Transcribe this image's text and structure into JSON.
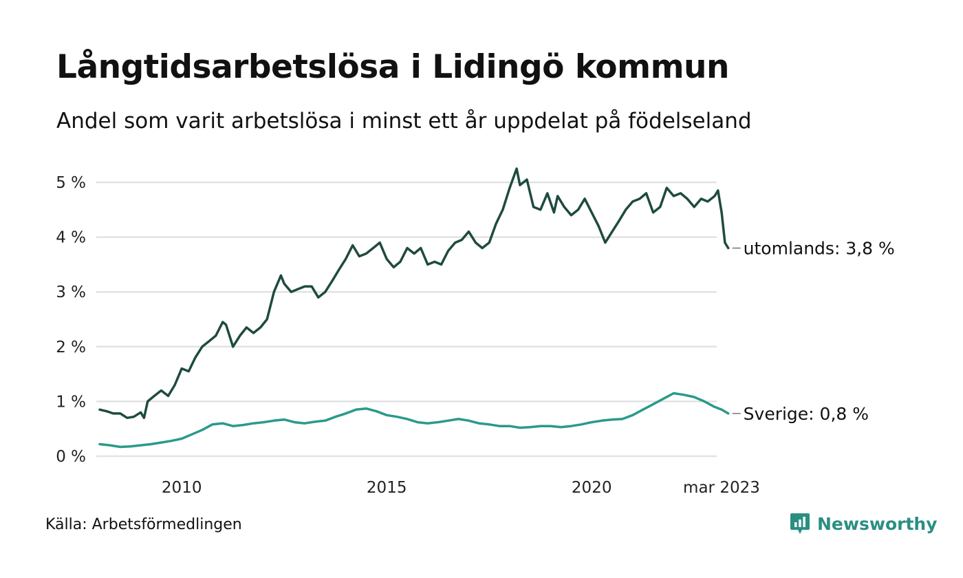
{
  "title": "Långtidsarbetslösa i Lidingö kommun",
  "subtitle": "Andel som varit arbetslösa i minst ett år uppdelat på födelseland",
  "source": "Källa: Arbetsförmedlingen",
  "brand": {
    "name": "Newsworthy",
    "icon": "newsworthy-logo-icon",
    "color": "#2a8f82"
  },
  "chart_data": {
    "type": "line",
    "title": "Långtidsarbetslösa i Lidingö kommun",
    "subtitle": "Andel som varit arbetslösa i minst ett år uppdelat på födelseland",
    "xlabel": "",
    "ylabel": "",
    "x_range": [
      2008.0,
      2023.167
    ],
    "ylim": [
      0,
      5.3
    ],
    "y_ticks": [
      0,
      1,
      2,
      3,
      4,
      5
    ],
    "y_tick_labels": [
      "0 %",
      "1 %",
      "2 %",
      "3 %",
      "4 %",
      "5 %"
    ],
    "x_ticks": [
      2010,
      2015,
      2020,
      2023.167
    ],
    "x_tick_labels": [
      "2010",
      "2015",
      "2020",
      "mar 2023"
    ],
    "grid": true,
    "legend": "none (direct end labels)",
    "series": [
      {
        "name": "utomlands",
        "end_label": "utomlands: 3,8 %",
        "color": "#1f4a40",
        "points": [
          [
            2008.0,
            0.85
          ],
          [
            2008.17,
            0.82
          ],
          [
            2008.33,
            0.78
          ],
          [
            2008.5,
            0.78
          ],
          [
            2008.67,
            0.7
          ],
          [
            2008.83,
            0.72
          ],
          [
            2009.0,
            0.8
          ],
          [
            2009.08,
            0.7
          ],
          [
            2009.17,
            1.0
          ],
          [
            2009.33,
            1.1
          ],
          [
            2009.5,
            1.2
          ],
          [
            2009.67,
            1.1
          ],
          [
            2009.83,
            1.3
          ],
          [
            2010.0,
            1.6
          ],
          [
            2010.17,
            1.55
          ],
          [
            2010.33,
            1.8
          ],
          [
            2010.5,
            2.0
          ],
          [
            2010.67,
            2.1
          ],
          [
            2010.83,
            2.2
          ],
          [
            2011.0,
            2.45
          ],
          [
            2011.08,
            2.4
          ],
          [
            2011.25,
            2.0
          ],
          [
            2011.42,
            2.2
          ],
          [
            2011.58,
            2.35
          ],
          [
            2011.75,
            2.25
          ],
          [
            2011.92,
            2.35
          ],
          [
            2012.08,
            2.5
          ],
          [
            2012.25,
            3.0
          ],
          [
            2012.42,
            3.3
          ],
          [
            2012.5,
            3.15
          ],
          [
            2012.67,
            3.0
          ],
          [
            2012.83,
            3.05
          ],
          [
            2013.0,
            3.1
          ],
          [
            2013.17,
            3.1
          ],
          [
            2013.33,
            2.9
          ],
          [
            2013.5,
            3.0
          ],
          [
            2013.67,
            3.2
          ],
          [
            2013.83,
            3.4
          ],
          [
            2014.0,
            3.6
          ],
          [
            2014.17,
            3.85
          ],
          [
            2014.33,
            3.65
          ],
          [
            2014.5,
            3.7
          ],
          [
            2014.67,
            3.8
          ],
          [
            2014.83,
            3.9
          ],
          [
            2015.0,
            3.6
          ],
          [
            2015.17,
            3.45
          ],
          [
            2015.33,
            3.55
          ],
          [
            2015.5,
            3.8
          ],
          [
            2015.67,
            3.7
          ],
          [
            2015.83,
            3.8
          ],
          [
            2016.0,
            3.5
          ],
          [
            2016.17,
            3.55
          ],
          [
            2016.33,
            3.5
          ],
          [
            2016.5,
            3.75
          ],
          [
            2016.67,
            3.9
          ],
          [
            2016.83,
            3.95
          ],
          [
            2017.0,
            4.1
          ],
          [
            2017.17,
            3.9
          ],
          [
            2017.33,
            3.8
          ],
          [
            2017.5,
            3.9
          ],
          [
            2017.67,
            4.25
          ],
          [
            2017.83,
            4.5
          ],
          [
            2018.0,
            4.9
          ],
          [
            2018.17,
            5.25
          ],
          [
            2018.25,
            4.95
          ],
          [
            2018.42,
            5.05
          ],
          [
            2018.58,
            4.55
          ],
          [
            2018.75,
            4.5
          ],
          [
            2018.92,
            4.8
          ],
          [
            2019.08,
            4.45
          ],
          [
            2019.17,
            4.75
          ],
          [
            2019.33,
            4.55
          ],
          [
            2019.5,
            4.4
          ],
          [
            2019.67,
            4.5
          ],
          [
            2019.83,
            4.7
          ],
          [
            2020.0,
            4.45
          ],
          [
            2020.17,
            4.2
          ],
          [
            2020.33,
            3.9
          ],
          [
            2020.5,
            4.1
          ],
          [
            2020.67,
            4.3
          ],
          [
            2020.83,
            4.5
          ],
          [
            2021.0,
            4.65
          ],
          [
            2021.17,
            4.7
          ],
          [
            2021.33,
            4.8
          ],
          [
            2021.5,
            4.45
          ],
          [
            2021.67,
            4.55
          ],
          [
            2021.83,
            4.9
          ],
          [
            2022.0,
            4.75
          ],
          [
            2022.17,
            4.8
          ],
          [
            2022.33,
            4.7
          ],
          [
            2022.5,
            4.55
          ],
          [
            2022.67,
            4.7
          ],
          [
            2022.83,
            4.65
          ],
          [
            2023.0,
            4.75
          ],
          [
            2023.08,
            4.85
          ],
          [
            2023.17,
            4.45
          ],
          [
            2023.25,
            3.9
          ],
          [
            2023.33,
            3.8
          ]
        ]
      },
      {
        "name": "Sverige",
        "end_label": "Sverige: 0,8 %",
        "color": "#2a9a8a",
        "points": [
          [
            2008.0,
            0.22
          ],
          [
            2008.25,
            0.2
          ],
          [
            2008.5,
            0.17
          ],
          [
            2008.75,
            0.18
          ],
          [
            2009.0,
            0.2
          ],
          [
            2009.25,
            0.22
          ],
          [
            2009.5,
            0.25
          ],
          [
            2009.75,
            0.28
          ],
          [
            2010.0,
            0.32
          ],
          [
            2010.25,
            0.4
          ],
          [
            2010.5,
            0.48
          ],
          [
            2010.75,
            0.58
          ],
          [
            2011.0,
            0.6
          ],
          [
            2011.25,
            0.55
          ],
          [
            2011.5,
            0.57
          ],
          [
            2011.75,
            0.6
          ],
          [
            2012.0,
            0.62
          ],
          [
            2012.25,
            0.65
          ],
          [
            2012.5,
            0.67
          ],
          [
            2012.75,
            0.62
          ],
          [
            2013.0,
            0.6
          ],
          [
            2013.25,
            0.63
          ],
          [
            2013.5,
            0.65
          ],
          [
            2013.75,
            0.72
          ],
          [
            2014.0,
            0.78
          ],
          [
            2014.25,
            0.85
          ],
          [
            2014.5,
            0.87
          ],
          [
            2014.75,
            0.82
          ],
          [
            2015.0,
            0.75
          ],
          [
            2015.25,
            0.72
          ],
          [
            2015.5,
            0.68
          ],
          [
            2015.75,
            0.62
          ],
          [
            2016.0,
            0.6
          ],
          [
            2016.25,
            0.62
          ],
          [
            2016.5,
            0.65
          ],
          [
            2016.75,
            0.68
          ],
          [
            2017.0,
            0.65
          ],
          [
            2017.25,
            0.6
          ],
          [
            2017.5,
            0.58
          ],
          [
            2017.75,
            0.55
          ],
          [
            2018.0,
            0.55
          ],
          [
            2018.25,
            0.52
          ],
          [
            2018.5,
            0.53
          ],
          [
            2018.75,
            0.55
          ],
          [
            2019.0,
            0.55
          ],
          [
            2019.25,
            0.53
          ],
          [
            2019.5,
            0.55
          ],
          [
            2019.75,
            0.58
          ],
          [
            2020.0,
            0.62
          ],
          [
            2020.25,
            0.65
          ],
          [
            2020.5,
            0.67
          ],
          [
            2020.75,
            0.68
          ],
          [
            2021.0,
            0.75
          ],
          [
            2021.25,
            0.85
          ],
          [
            2021.5,
            0.95
          ],
          [
            2021.75,
            1.05
          ],
          [
            2022.0,
            1.15
          ],
          [
            2022.25,
            1.12
          ],
          [
            2022.5,
            1.08
          ],
          [
            2022.75,
            1.0
          ],
          [
            2023.0,
            0.9
          ],
          [
            2023.17,
            0.85
          ],
          [
            2023.33,
            0.78
          ]
        ]
      }
    ]
  }
}
